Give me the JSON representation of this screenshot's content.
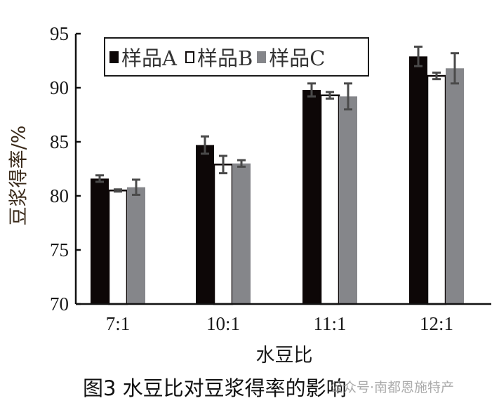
{
  "chart_data": {
    "type": "bar",
    "title": "",
    "xlabel": "水豆比",
    "ylabel": "豆浆得率/%",
    "ylim": [
      70,
      95
    ],
    "yticks": [
      70,
      75,
      80,
      85,
      90,
      95
    ],
    "categories": [
      "7:1",
      "10:1",
      "11:1",
      "12:1"
    ],
    "legend_position": "top",
    "grid": false,
    "series": [
      {
        "name": "样品A",
        "color": "#0d0707",
        "values": [
          81.6,
          84.7,
          89.8,
          92.9
        ],
        "errors": [
          0.3,
          0.8,
          0.6,
          0.9
        ]
      },
      {
        "name": "样品B",
        "color": "#ffffff",
        "values": [
          80.5,
          82.9,
          89.3,
          91.1
        ],
        "errors": [
          0.1,
          0.8,
          0.3,
          0.3
        ]
      },
      {
        "name": "样品C",
        "color": "#85868a",
        "values": [
          80.8,
          83.0,
          89.2,
          91.8
        ],
        "errors": [
          0.7,
          0.3,
          1.2,
          1.4
        ]
      }
    ],
    "error_bar_color": "#4a4a4a"
  },
  "caption": "图3   水豆比对豆浆得率的影响",
  "watermark": "公众号·南都恩施特产"
}
